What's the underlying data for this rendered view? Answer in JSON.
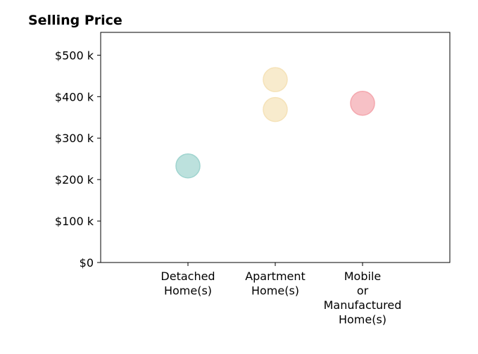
{
  "chart_data": {
    "type": "scatter",
    "title": "Selling Price",
    "xlabel": "",
    "ylabel": "",
    "categories": [
      [
        "Detached",
        "Home(s)"
      ],
      [
        "Apartment",
        "Home(s)"
      ],
      [
        "Mobile",
        "or",
        "Manufactured",
        "Home(s)"
      ]
    ],
    "ylim": [
      0,
      555000
    ],
    "yticks": [
      0,
      100000,
      200000,
      300000,
      400000,
      500000
    ],
    "ytick_labels": [
      "$0",
      "$100 k",
      "$200 k",
      "$300 k",
      "$400 k",
      "$500 k"
    ],
    "grid": false,
    "legend": "none",
    "points": [
      {
        "category": 0,
        "y": 233000,
        "color": "#9fd4cf"
      },
      {
        "category": 1,
        "y": 441000,
        "color": "#f5e2b8"
      },
      {
        "category": 1,
        "y": 369000,
        "color": "#f5e2b8"
      },
      {
        "category": 2,
        "y": 384000,
        "color": "#f4a7ae"
      }
    ]
  }
}
